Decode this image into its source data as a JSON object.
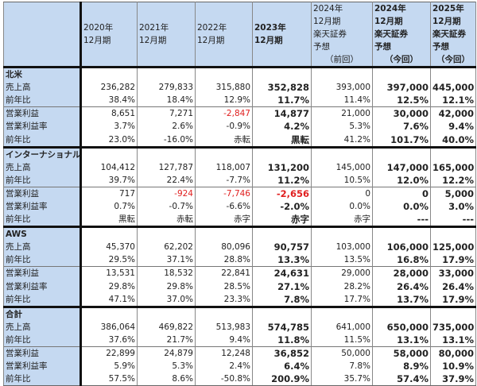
{
  "columns": [
    {
      "lines": [
        "2020年",
        "12月期"
      ],
      "bold": false
    },
    {
      "lines": [
        "2021年",
        "12月期"
      ],
      "bold": false
    },
    {
      "lines": [
        "2022年",
        "12月期"
      ],
      "bold": false
    },
    {
      "lines": [
        "2023年",
        "12月期"
      ],
      "bold": true
    },
    {
      "lines": [
        "2024年",
        "12月期",
        "楽天証券",
        "予想",
        "（前回）"
      ],
      "bold": false
    },
    {
      "lines": [
        "2024年",
        "12月期",
        "楽天証券",
        "予想",
        "（今回）"
      ],
      "bold": true
    },
    {
      "lines": [
        "2025年",
        "12月期",
        "楽天証券",
        "予想",
        "（今回）"
      ],
      "bold": true
    }
  ],
  "colors": {
    "header_bg": "#c5d9f1",
    "negative": "#e02020"
  },
  "sections": [
    {
      "name": "北米",
      "rows": [
        {
          "label": "売上高",
          "values": [
            "236,282",
            "279,833",
            "315,880",
            "352,828",
            "393,000",
            "397,000",
            "445,000"
          ]
        },
        {
          "label": "前年比",
          "values": [
            "38.4%",
            "18.4%",
            "12.9%",
            "11.7%",
            "11.4%",
            "12.5%",
            "12.1%"
          ]
        },
        {
          "label": "営業利益",
          "values": [
            "8,651",
            "7,271",
            "-2,847",
            "14,877",
            "21,000",
            "30,000",
            "42,000"
          ]
        },
        {
          "label": "営業利益率",
          "values": [
            "3.7%",
            "2.6%",
            "-0.9%",
            "4.2%",
            "5.3%",
            "7.6%",
            "9.4%"
          ]
        },
        {
          "label": "前年比",
          "values": [
            "23.0%",
            "-16.0%",
            "赤転",
            "黒転",
            "41.2%",
            "101.7%",
            "40.0%"
          ]
        }
      ]
    },
    {
      "name": "インターナショナル",
      "rows": [
        {
          "label": "売上高",
          "values": [
            "104,412",
            "127,787",
            "118,007",
            "131,200",
            "145,000",
            "147,000",
            "165,000"
          ]
        },
        {
          "label": "前年比",
          "values": [
            "39.7%",
            "22.4%",
            "-7.7%",
            "11.2%",
            "10.5%",
            "12.0%",
            "12.2%"
          ]
        },
        {
          "label": "営業利益",
          "values": [
            "717",
            "-924",
            "-7,746",
            "-2,656",
            "0",
            "0",
            "5,000"
          ]
        },
        {
          "label": "営業利益率",
          "values": [
            "0.7%",
            "-0.7%",
            "-6.6%",
            "-2.0%",
            "0.0%",
            "0.0%",
            "3.0%"
          ]
        },
        {
          "label": "前年比",
          "values": [
            "黒転",
            "赤転",
            "赤字",
            "赤字",
            "赤字",
            "---",
            "---"
          ]
        }
      ]
    },
    {
      "name": "AWS",
      "rows": [
        {
          "label": "売上高",
          "values": [
            "45,370",
            "62,202",
            "80,096",
            "90,757",
            "103,000",
            "106,000",
            "125,000"
          ]
        },
        {
          "label": "前年比",
          "values": [
            "29.5%",
            "37.1%",
            "28.8%",
            "13.3%",
            "13.5%",
            "16.8%",
            "17.9%"
          ]
        },
        {
          "label": "営業利益",
          "values": [
            "13,531",
            "18,532",
            "22,841",
            "24,631",
            "29,000",
            "28,000",
            "33,000"
          ]
        },
        {
          "label": "営業利益率",
          "values": [
            "29.8%",
            "29.8%",
            "28.5%",
            "27.1%",
            "28.2%",
            "26.4%",
            "26.4%"
          ]
        },
        {
          "label": "前年比",
          "values": [
            "47.1%",
            "37.0%",
            "23.3%",
            "7.8%",
            "17.7%",
            "13.7%",
            "17.9%"
          ]
        }
      ]
    },
    {
      "name": "合計",
      "rows": [
        {
          "label": "売上高",
          "values": [
            "386,064",
            "469,822",
            "513,983",
            "574,785",
            "641,000",
            "650,000",
            "735,000"
          ]
        },
        {
          "label": "前年比",
          "values": [
            "37.6%",
            "21.7%",
            "9.4%",
            "11.8%",
            "11.5%",
            "13.1%",
            "13.1%"
          ]
        },
        {
          "label": "営業利益",
          "values": [
            "22,899",
            "24,879",
            "12,248",
            "36,852",
            "50,000",
            "58,000",
            "80,000"
          ]
        },
        {
          "label": "営業利益率",
          "values": [
            "5.9%",
            "5.3%",
            "2.4%",
            "6.4%",
            "7.8%",
            "8.9%",
            "10.9%"
          ]
        },
        {
          "label": "前年比",
          "values": [
            "57.5%",
            "8.6%",
            "-50.8%",
            "200.9%",
            "35.7%",
            "57.4%",
            "37.9%"
          ]
        }
      ]
    }
  ]
}
